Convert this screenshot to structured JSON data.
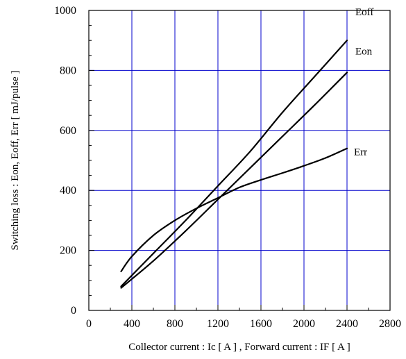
{
  "chart_data": {
    "type": "line",
    "title": "",
    "xlabel": "Collector current  :  Ic  [ A ] , Forward current  :  IF  [ A ]",
    "ylabel": "Switching loss  :  Eon, Eoff, Err  [  mJ/pulse ]",
    "xlim": [
      0,
      2800
    ],
    "ylim": [
      0,
      1000
    ],
    "x_ticks": [
      0,
      400,
      800,
      1200,
      1600,
      2000,
      2400,
      2800
    ],
    "y_ticks": [
      0,
      200,
      400,
      600,
      800,
      1000
    ],
    "grid": true,
    "grid_color": "#0000cc",
    "line_color": "#000000",
    "legend": "inline labels at line ends",
    "series": [
      {
        "name": "Eoff",
        "x": [
          300,
          600,
          900,
          1200,
          1500,
          1800,
          2100,
          2400
        ],
        "y": [
          80,
          190,
          300,
          415,
          530,
          660,
          780,
          900
        ]
      },
      {
        "name": "Eon",
        "x": [
          300,
          600,
          900,
          1200,
          1500,
          1800,
          2100,
          2400
        ],
        "y": [
          75,
          165,
          265,
          370,
          475,
          580,
          685,
          793
        ]
      },
      {
        "name": "Err",
        "x": [
          300,
          400,
          600,
          800,
          1000,
          1200,
          1400,
          1600,
          1800,
          2000,
          2200,
          2400
        ],
        "y": [
          130,
          180,
          250,
          300,
          340,
          375,
          410,
          435,
          458,
          482,
          508,
          540
        ]
      }
    ]
  }
}
